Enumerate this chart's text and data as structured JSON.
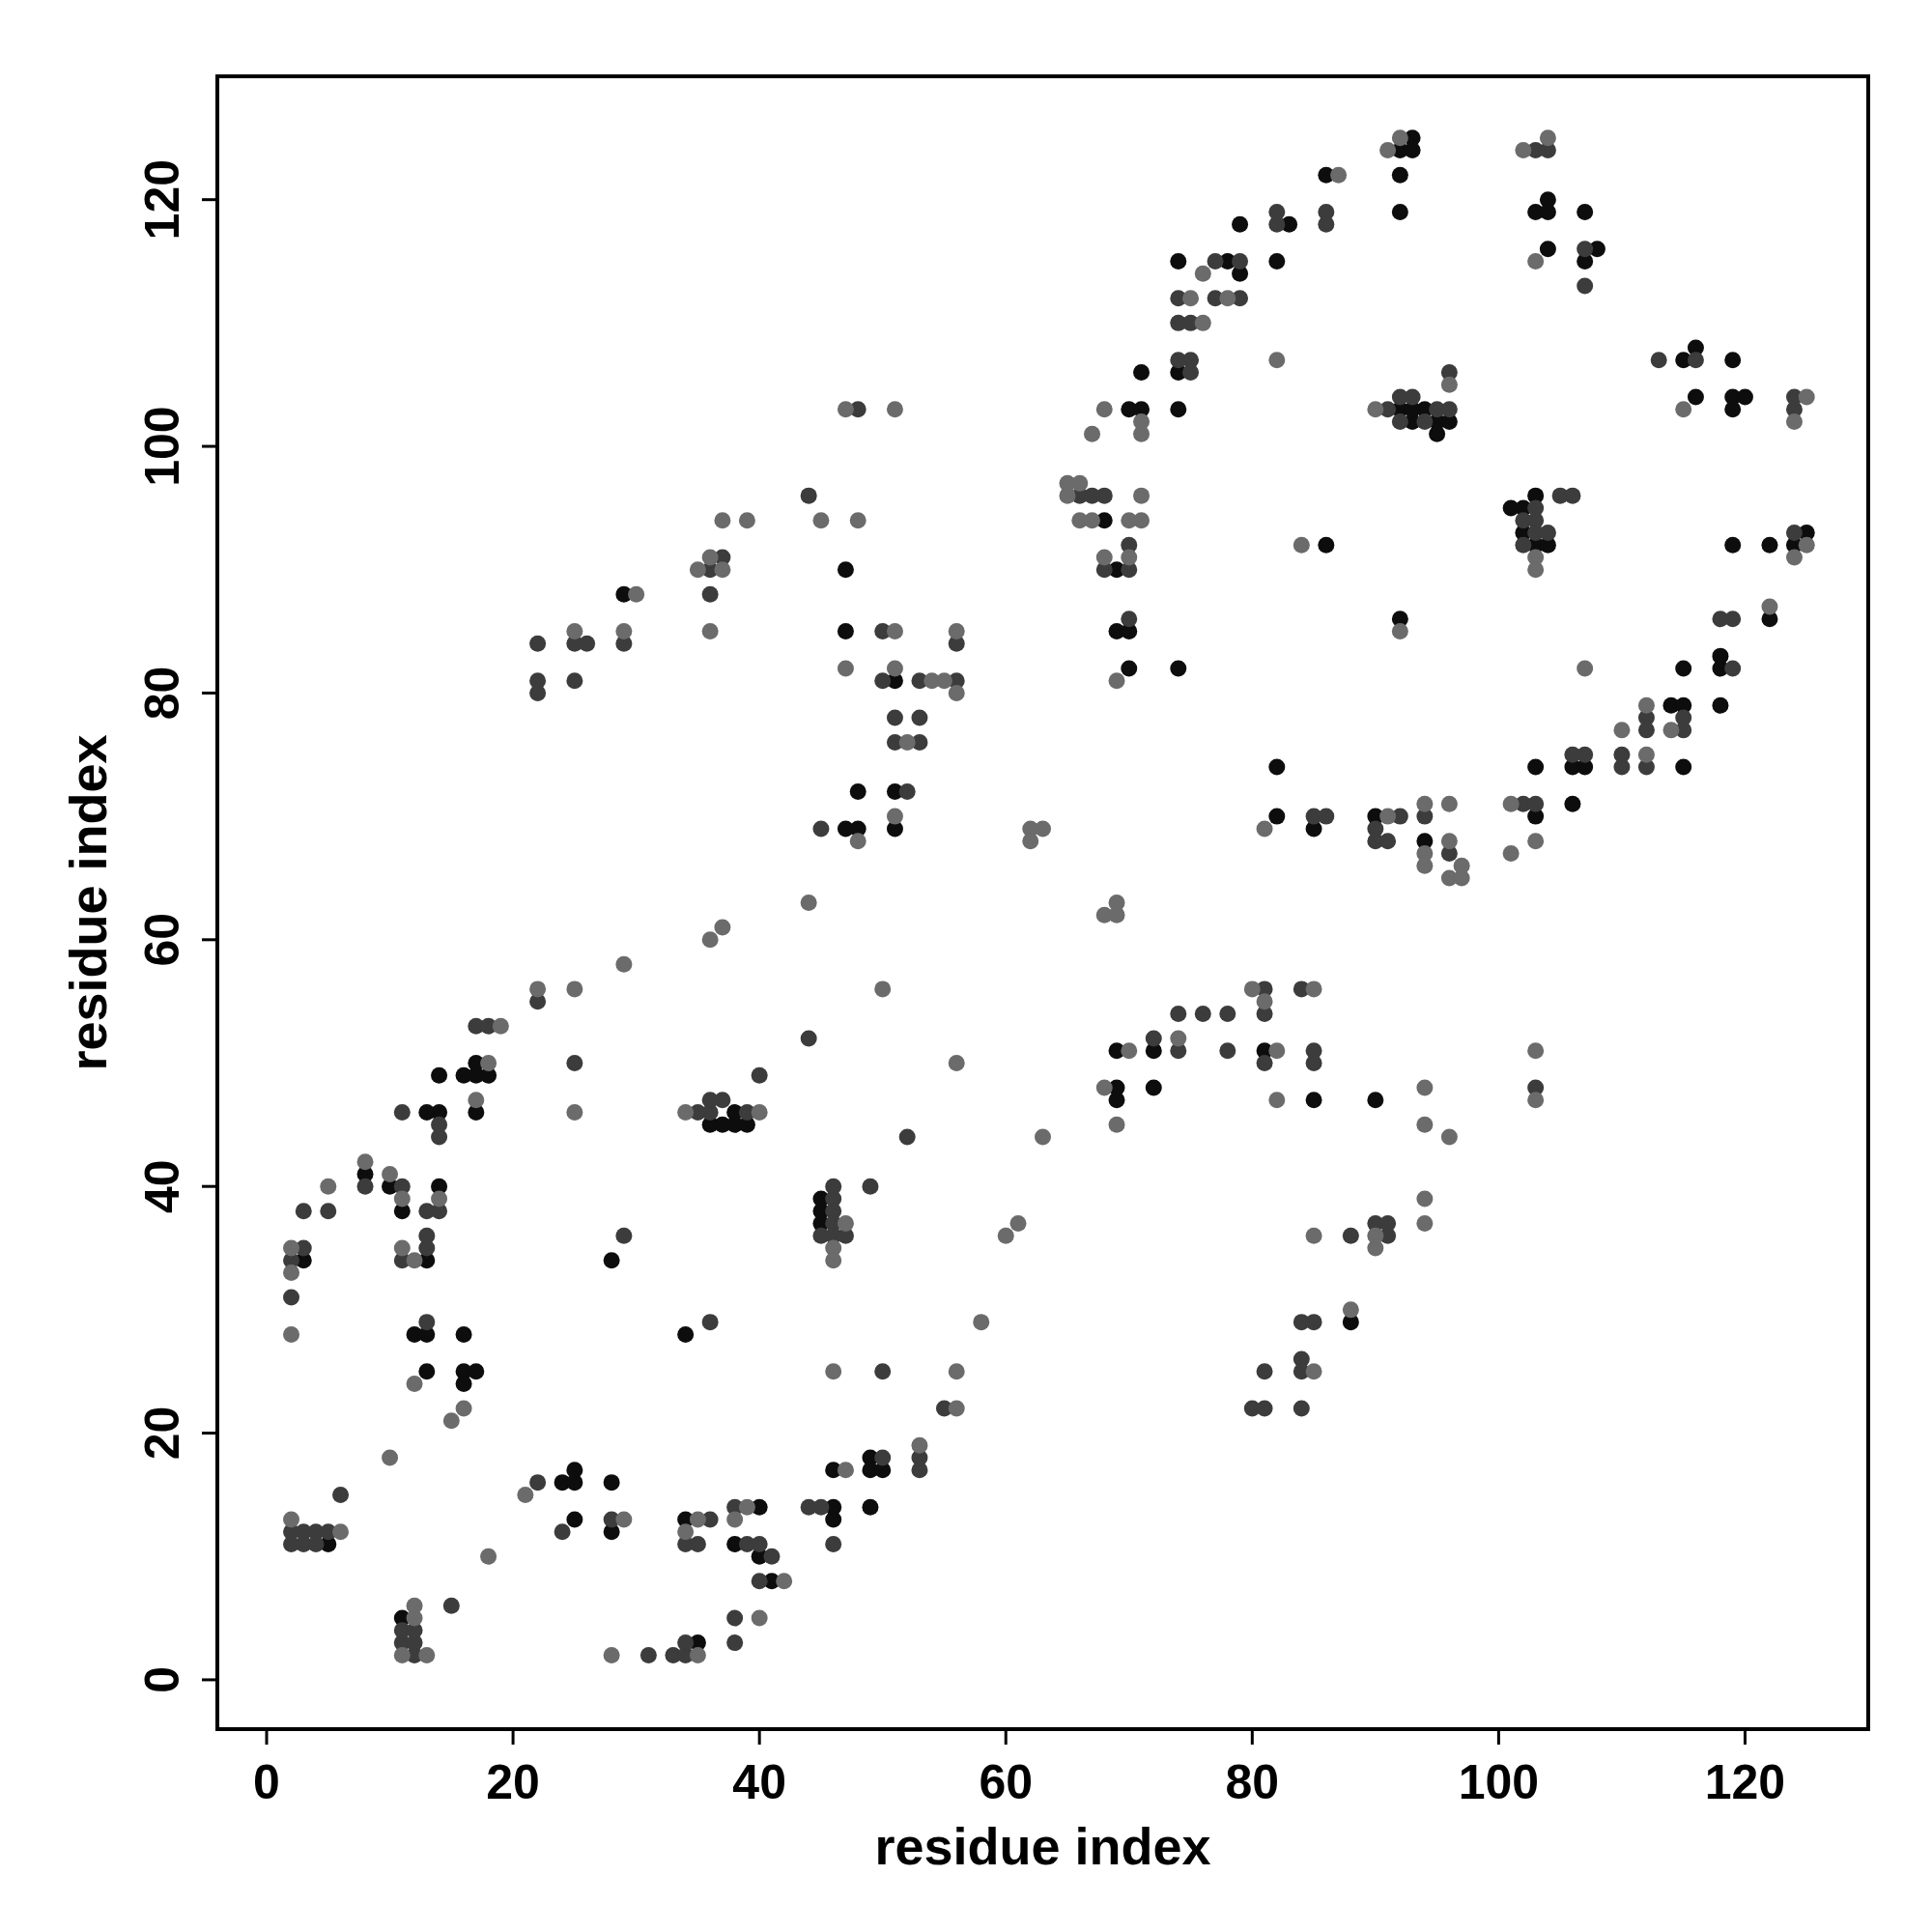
{
  "chart_data": {
    "type": "scatter",
    "xlabel": "residue index",
    "ylabel": "residue index",
    "xlim": [
      -4,
      130
    ],
    "ylim": [
      -4,
      130
    ],
    "xticks": [
      0,
      20,
      40,
      60,
      80,
      100,
      120
    ],
    "yticks": [
      0,
      20,
      40,
      60,
      80,
      100,
      120
    ],
    "marker": "circle",
    "series": [
      {
        "color": "#0d0d0d",
        "x": [
          5,
          3,
          8,
          10,
          11,
          13,
          14,
          14,
          13,
          14,
          17,
          17,
          17,
          16,
          18,
          12,
          13,
          13,
          16,
          16,
          16,
          17,
          11,
          24,
          25,
          25,
          25,
          28,
          28,
          35,
          34,
          38,
          40,
          40,
          41,
          28,
          34,
          29,
          36,
          37,
          38,
          38,
          39,
          47,
          47,
          51,
          47,
          48,
          48,
          51,
          51,
          45,
          45,
          45,
          46,
          46,
          46,
          49,
          49,
          50,
          49,
          68,
          69,
          70,
          71,
          69,
          70,
          70,
          69,
          69,
          69,
          72,
          72,
          81,
          85,
          74,
          74,
          74,
          74,
          78,
          79,
          79,
          71,
          83,
          82,
          86,
          92,
          93,
          93,
          92,
          92,
          82,
          82,
          85,
          86,
          90,
          94,
          92,
          93,
          93,
          94,
          95,
          95,
          96,
          92,
          88,
          90,
          102,
          101,
          102,
          103,
          103,
          104,
          103,
          103,
          103,
          104,
          104,
          104,
          107,
          107,
          108,
          106,
          106,
          107,
          114,
          115,
          115,
          115,
          115,
          116,
          116,
          119,
          119,
          119,
          120,
          118,
          118,
          118,
          119,
          122,
          122,
          124,
          125
        ],
        "values": [
          11,
          34,
          41,
          40,
          38,
          34,
          40,
          46,
          46,
          49,
          46,
          49,
          50,
          49,
          49,
          28,
          28,
          25,
          28,
          25,
          24,
          25,
          5,
          16,
          16,
          17,
          13,
          16,
          12,
          3,
          13,
          11,
          14,
          10,
          8,
          34,
          28,
          88,
          45,
          45,
          45,
          46,
          45,
          90,
          85,
          81,
          69,
          69,
          72,
          72,
          69,
          39,
          38,
          37,
          14,
          13,
          17,
          18,
          17,
          17,
          14,
          94,
          90,
          103,
          103,
          85,
          85,
          82,
          48,
          47,
          51,
          51,
          48,
          51,
          47,
          82,
          103,
          106,
          115,
          115,
          114,
          118,
          106,
          118,
          115,
          122,
          124,
          125,
          124,
          122,
          119,
          74,
          70,
          69,
          92,
          70,
          68,
          103,
          103,
          102,
          103,
          102,
          101,
          102,
          86,
          29,
          47,
          95,
          95,
          93,
          96,
          92,
          92,
          70,
          74,
          119,
          119,
          120,
          116,
          119,
          115,
          116,
          71,
          74,
          74,
          79,
          79,
          82,
          74,
          107,
          108,
          104,
          107,
          104,
          103,
          104,
          79,
          82,
          83,
          92,
          92,
          86,
          92,
          93
        ]
      },
      {
        "color": "#3c3c3c",
        "x": [
          2,
          2,
          3,
          3,
          4,
          4,
          5,
          6,
          2,
          2,
          3,
          3,
          5,
          8,
          11,
          11,
          13,
          13,
          13,
          14,
          14,
          14,
          11,
          17,
          18,
          13,
          11,
          11,
          12,
          12,
          12,
          15,
          22,
          24,
          28,
          31,
          33,
          34,
          34,
          34,
          35,
          36,
          38,
          39,
          40,
          41,
          40,
          38,
          38,
          29,
          36,
          22,
          25,
          22,
          22,
          22,
          25,
          25,
          26,
          29,
          36,
          37,
          36,
          35,
          36,
          36,
          37,
          39,
          40,
          44,
          44,
          48,
          50,
          50,
          51,
          51,
          53,
          53,
          53,
          56,
          56,
          45,
          52,
          45,
          46,
          46,
          46,
          46,
          46,
          47,
          49,
          44,
          45,
          46,
          50,
          53,
          53,
          50,
          52,
          55,
          66,
          67,
          68,
          68,
          70,
          70,
          70,
          72,
          74,
          74,
          76,
          78,
          78,
          81,
          81,
          81,
          84,
          85,
          85,
          74,
          75,
          75,
          74,
          75,
          74,
          77,
          77,
          79,
          79,
          82,
          82,
          86,
          86,
          85,
          86,
          90,
          90,
          91,
          92,
          94,
          96,
          91,
          92,
          92,
          93,
          94,
          95,
          96,
          96,
          80,
          81,
          81,
          84,
          84,
          84,
          84,
          85,
          88,
          90,
          91,
          91,
          102,
          102,
          103,
          103,
          103,
          104,
          105,
          106,
          102,
          103,
          103,
          103,
          104,
          107,
          107,
          106,
          107,
          110,
          110,
          112,
          112,
          112,
          115,
          115,
          113,
          116,
          118,
          119,
          119,
          124,
          124,
          124
        ],
        "values": [
          12,
          11,
          12,
          11,
          12,
          11,
          12,
          15,
          31,
          34,
          35,
          38,
          38,
          40,
          40,
          34,
          35,
          36,
          38,
          38,
          44,
          45,
          46,
          53,
          53,
          29,
          3,
          4,
          2,
          3,
          4,
          6,
          16,
          12,
          13,
          2,
          2,
          2,
          3,
          11,
          11,
          13,
          14,
          11,
          11,
          10,
          8,
          5,
          3,
          36,
          29,
          55,
          50,
          80,
          81,
          84,
          81,
          84,
          84,
          84,
          90,
          91,
          88,
          46,
          46,
          47,
          47,
          46,
          49,
          52,
          96,
          103,
          85,
          81,
          78,
          76,
          81,
          78,
          76,
          81,
          84,
          69,
          72,
          36,
          40,
          39,
          38,
          37,
          36,
          36,
          40,
          14,
          14,
          11,
          18,
          17,
          18,
          25,
          44,
          22,
          96,
          96,
          96,
          90,
          90,
          92,
          86,
          52,
          54,
          51,
          54,
          54,
          51,
          56,
          54,
          50,
          56,
          51,
          50,
          107,
          107,
          106,
          110,
          110,
          112,
          115,
          112,
          112,
          115,
          118,
          119,
          118,
          119,
          70,
          70,
          69,
          68,
          68,
          70,
          70,
          67,
          103,
          104,
          102,
          104,
          102,
          103,
          103,
          106,
          22,
          22,
          25,
          26,
          25,
          22,
          29,
          29,
          36,
          37,
          37,
          36,
          94,
          92,
          95,
          94,
          93,
          93,
          96,
          96,
          71,
          71,
          48,
          124,
          124,
          116,
          113,
          75,
          75,
          75,
          74,
          78,
          77,
          74,
          78,
          77,
          107,
          107,
          86,
          86,
          82,
          104,
          103,
          93
        ]
      },
      {
        "color": "#6b6b6b",
        "x": [
          2,
          6,
          2,
          2,
          2,
          5,
          8,
          10,
          11,
          11,
          12,
          14,
          17,
          18,
          19,
          10,
          12,
          16,
          15,
          11,
          12,
          12,
          13,
          18,
          21,
          29,
          28,
          35,
          34,
          35,
          38,
          39,
          42,
          40,
          22,
          25,
          25,
          29,
          25,
          29,
          30,
          35,
          36,
          37,
          36,
          37,
          39,
          34,
          40,
          36,
          37,
          44,
          45,
          47,
          48,
          51,
          47,
          51,
          51,
          52,
          54,
          55,
          56,
          56,
          48,
          51,
          46,
          46,
          47,
          47,
          53,
          46,
          50,
          56,
          56,
          58,
          56,
          60,
          61,
          63,
          62,
          62,
          63,
          65,
          65,
          66,
          66,
          67,
          67,
          68,
          68,
          70,
          70,
          71,
          71,
          71,
          71,
          69,
          68,
          69,
          69,
          68,
          69,
          70,
          74,
          80,
          81,
          82,
          82,
          85,
          75,
          76,
          76,
          78,
          82,
          87,
          92,
          91,
          81,
          84,
          91,
          94,
          94,
          94,
          96,
          96,
          96,
          97,
          97,
          90,
          96,
          92,
          85,
          85,
          88,
          90,
          90,
          94,
          94,
          94,
          94,
          96,
          103,
          103,
          101,
          101,
          103,
          103,
          103,
          102,
          104,
          103,
          107,
          110,
          112,
          112,
          114,
          115,
          122,
          124,
          125,
          124,
          125
        ],
        "values": [
          13,
          12,
          28,
          33,
          35,
          40,
          42,
          41,
          39,
          35,
          34,
          39,
          47,
          50,
          53,
          18,
          24,
          22,
          21,
          2,
          5,
          6,
          2,
          10,
          15,
          13,
          2,
          2,
          12,
          13,
          13,
          14,
          8,
          5,
          56,
          56,
          46,
          58,
          85,
          85,
          88,
          90,
          91,
          90,
          85,
          94,
          94,
          46,
          46,
          60,
          61,
          63,
          94,
          103,
          94,
          103,
          82,
          85,
          82,
          76,
          81,
          81,
          80,
          85,
          68,
          70,
          35,
          34,
          37,
          17,
          19,
          25,
          56,
          22,
          25,
          29,
          50,
          36,
          37,
          44,
          69,
          68,
          69,
          97,
          96,
          97,
          94,
          94,
          101,
          103,
          91,
          91,
          94,
          94,
          96,
          101,
          102,
          81,
          62,
          62,
          63,
          48,
          45,
          51,
          52,
          56,
          55,
          51,
          47,
          56,
          112,
          110,
          114,
          112,
          107,
          122,
          125,
          124,
          69,
          92,
          70,
          71,
          67,
          66,
          71,
          68,
          65,
          66,
          65,
          103,
          105,
          85,
          25,
          36,
          30,
          36,
          35,
          39,
          37,
          45,
          48,
          44,
          91,
          90,
          71,
          67,
          68,
          51,
          47,
          124,
          125,
          115,
          82,
          77,
          79,
          75,
          77,
          103,
          87,
          102,
          104,
          91,
          92
        ]
      }
    ]
  }
}
